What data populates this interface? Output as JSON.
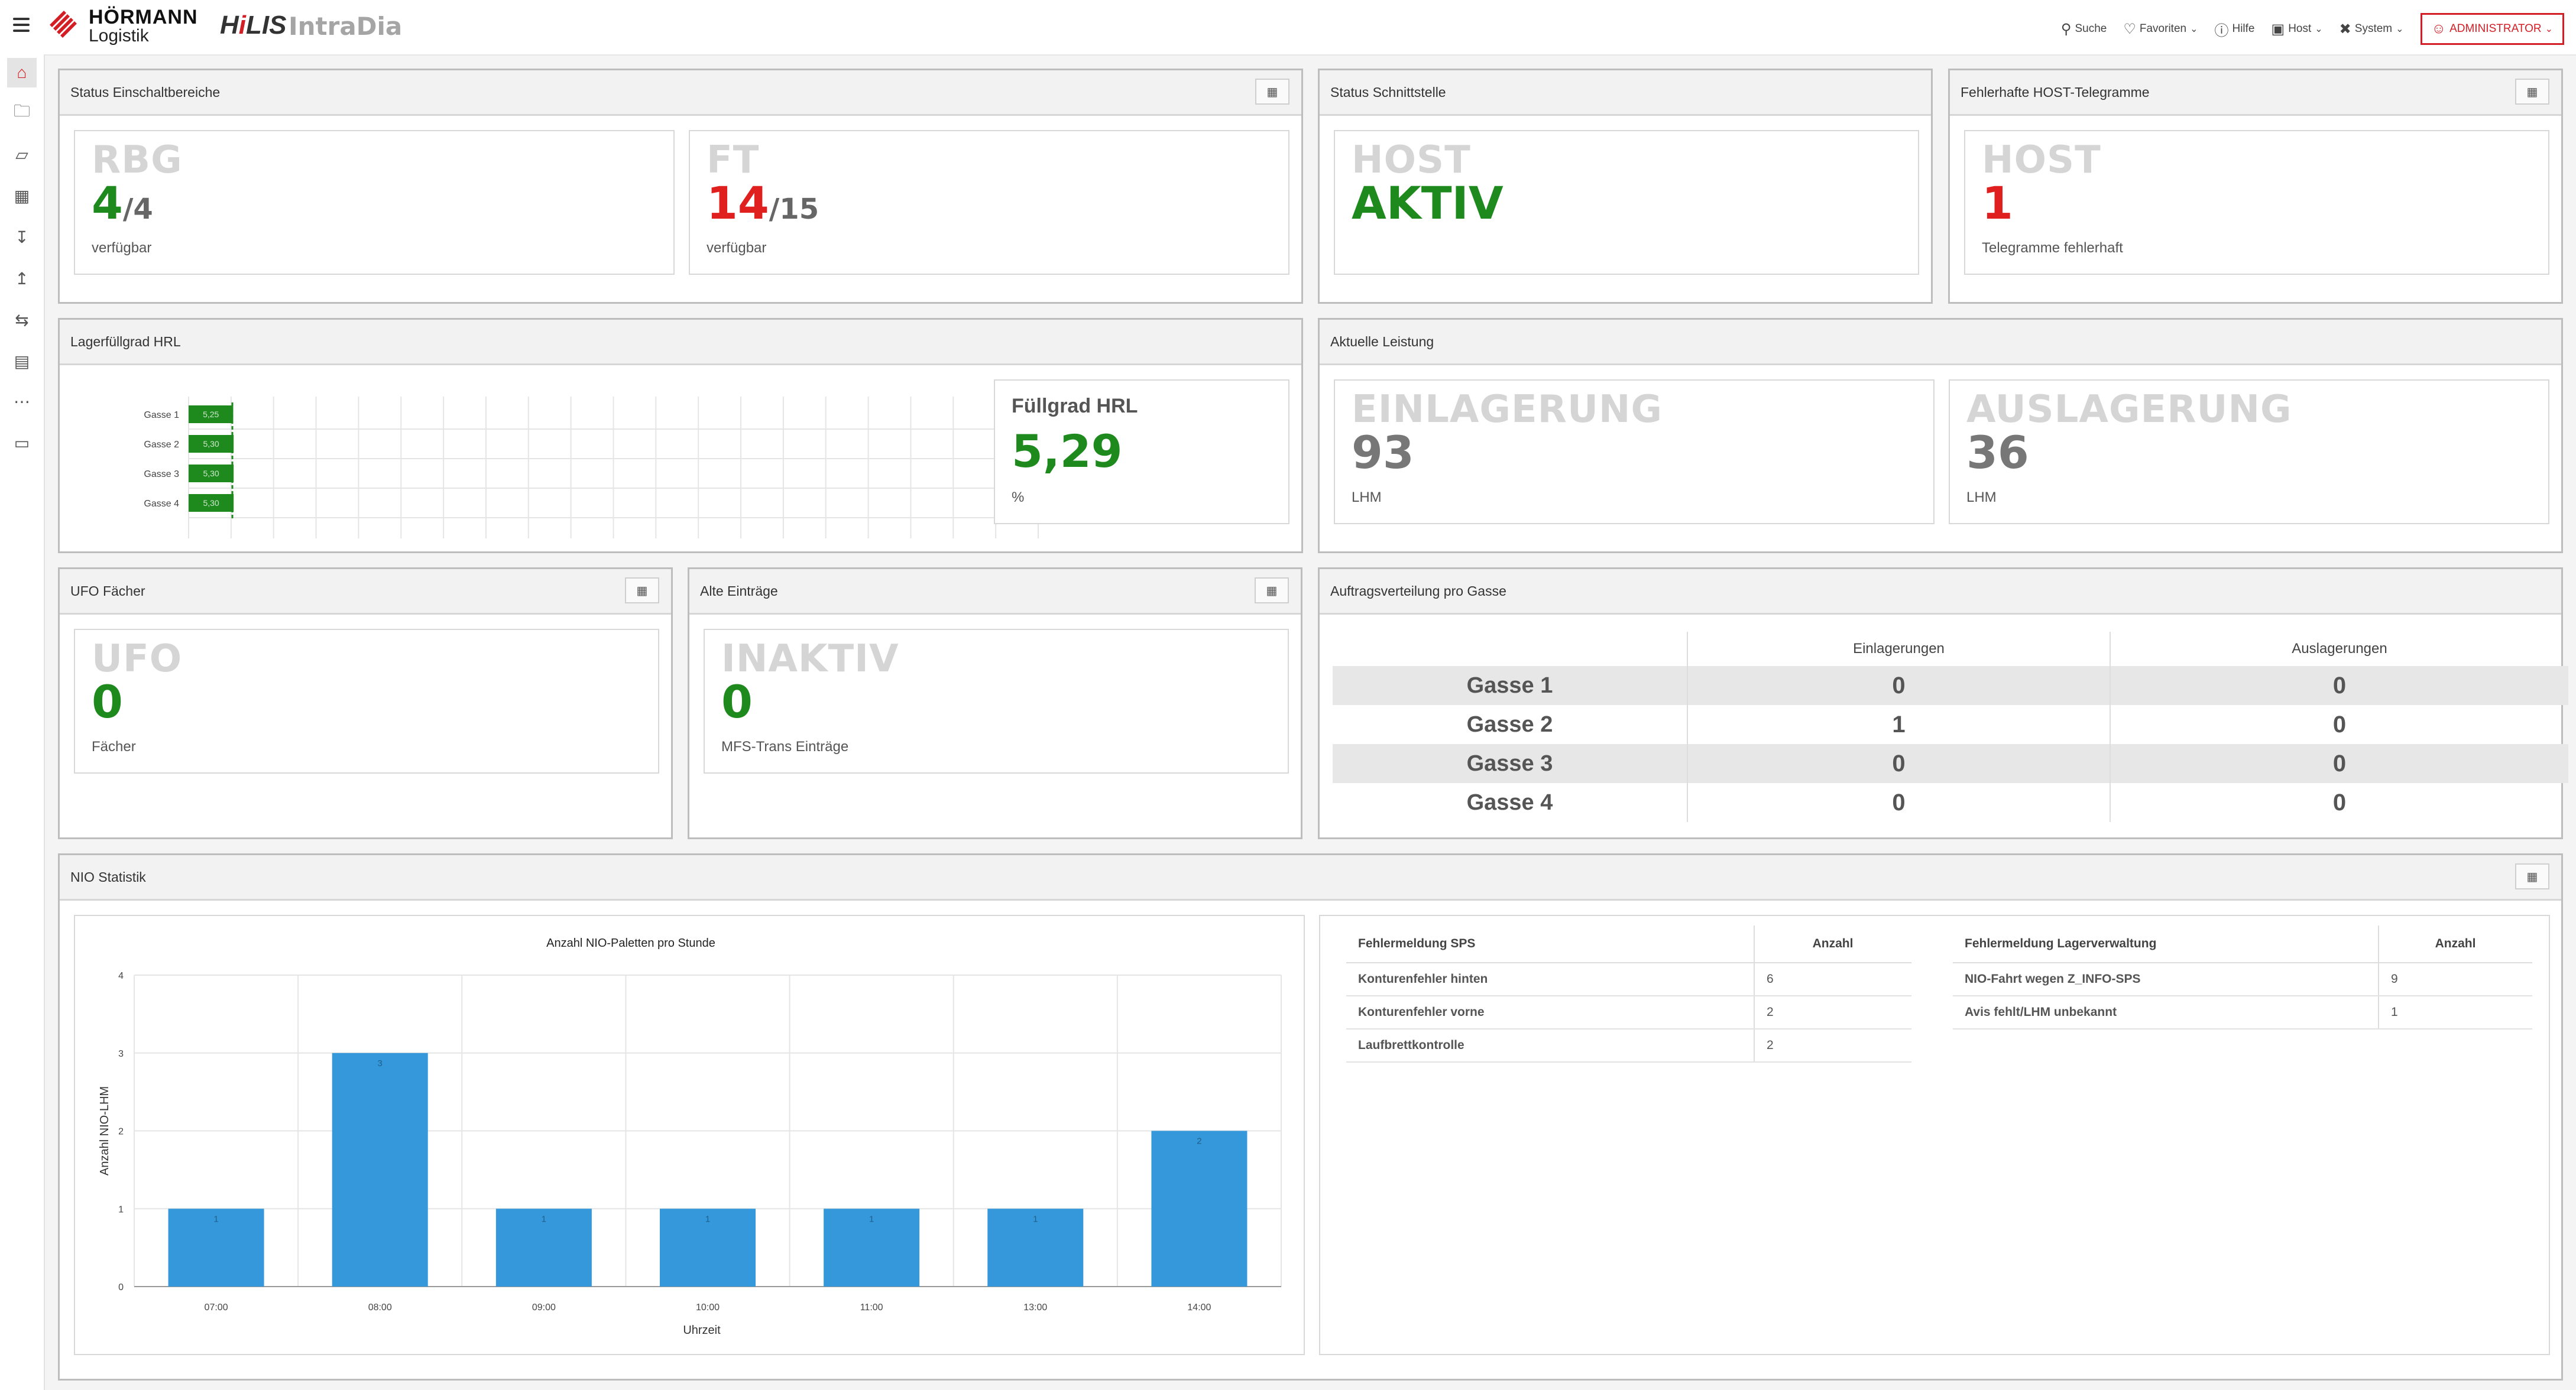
{
  "header": {
    "brand": "HÖRMANN",
    "brand_sub": "Logistik",
    "app_name_1": "H",
    "app_name_2": "i",
    "app_name_3": "LIS",
    "app_product": "IntraDia",
    "nav": {
      "search": "Suche",
      "favorites": "Favoriten",
      "help": "Hilfe",
      "host": "Host",
      "system": "System",
      "user": "ADMINISTRATOR"
    }
  },
  "sidebar": {
    "icons": [
      "home-icon",
      "folder-icon",
      "warehouse-icon",
      "grid-icon",
      "basket-in-icon",
      "basket-out-icon",
      "transfer-icon",
      "chart-icon",
      "more-icon",
      "monitor-icon"
    ]
  },
  "panels": {
    "status_einschalt": {
      "title": "Status Einschaltbereiche",
      "rbg": {
        "title": "RBG",
        "value": "4",
        "total": "/4",
        "caption": "verfügbar"
      },
      "ft": {
        "title": "FT",
        "value": "14",
        "total": "/15",
        "caption": "verfügbar"
      }
    },
    "status_schnittstelle": {
      "title": "Status Schnittstelle",
      "host": {
        "title": "HOST",
        "value": "AKTIV"
      }
    },
    "fehler_host": {
      "title": "Fehlerhafte HOST-Telegramme",
      "host": {
        "title": "HOST",
        "value": "1",
        "caption": "Telegramme fehlerhaft"
      }
    },
    "lagerfuell": {
      "title": "Lagerfüllgrad HRL",
      "fill_title": "Füllgrad HRL",
      "fill_value": "5,29",
      "fill_unit": "%"
    },
    "leistung": {
      "title": "Aktuelle Leistung",
      "ein": {
        "title": "EINLAGERUNG",
        "value": "93",
        "caption": "LHM"
      },
      "aus": {
        "title": "AUSLAGERUNG",
        "value": "36",
        "caption": "LHM"
      }
    },
    "ufo": {
      "title": "UFO Fächer",
      "tile": {
        "title": "UFO",
        "value": "0",
        "caption": "Fächer"
      }
    },
    "alte": {
      "title": "Alte Einträge",
      "tile": {
        "title": "INAKTIV",
        "value": "0",
        "caption": "MFS-Trans Einträge"
      }
    },
    "auftrag": {
      "title": "Auftragsverteilung pro Gasse",
      "col_ein": "Einlagerungen",
      "col_aus": "Auslagerungen",
      "rows": [
        {
          "label": "Gasse 1",
          "ein": "0",
          "aus": "0"
        },
        {
          "label": "Gasse 2",
          "ein": "1",
          "aus": "0"
        },
        {
          "label": "Gasse 3",
          "ein": "0",
          "aus": "0"
        },
        {
          "label": "Gasse 4",
          "ein": "0",
          "aus": "0"
        }
      ]
    },
    "nio": {
      "title": "NIO Statistik",
      "sps_table": {
        "col1": "Fehlermeldung SPS",
        "col2": "Anzahl",
        "rows": [
          {
            "label": "Konturenfehler hinten",
            "count": "6"
          },
          {
            "label": "Konturenfehler vorne",
            "count": "2"
          },
          {
            "label": "Laufbrettkontrolle",
            "count": "2"
          }
        ]
      },
      "lv_table": {
        "col1": "Fehlermeldung Lagerverwaltung",
        "col2": "Anzahl",
        "rows": [
          {
            "label": "NIO-Fahrt wegen Z_INFO-SPS",
            "count": "9"
          },
          {
            "label": "Avis fehlt/LHM unbekannt",
            "count": "1"
          }
        ]
      }
    }
  },
  "chart_data": [
    {
      "type": "bar",
      "orientation": "horizontal",
      "categories": [
        "Gasse 1",
        "Gasse 2",
        "Gasse 3",
        "Gasse 4"
      ],
      "values": [
        5.25,
        5.3,
        5.3,
        5.3
      ],
      "value_labels": [
        "5,25",
        "5,30",
        "5,30",
        "5,30"
      ],
      "xlim": [
        0,
        100
      ],
      "xticks": [
        "0,00",
        "5,00",
        "10,00",
        "15,00",
        "20,00",
        "25,00",
        "30,00",
        "35,00",
        "40,00",
        "45,00",
        "50,00",
        "55,00",
        "60,00",
        "65,00",
        "70,00",
        "75,00",
        "80,00",
        "85,00",
        "90,00",
        "95,00",
        "100,00"
      ],
      "colors": {
        "bar": "#1e8a1e",
        "grid": "#e5e5e5"
      },
      "grid": true
    },
    {
      "type": "bar",
      "title": "Anzahl NIO-Paletten pro Stunde",
      "xlabel": "Uhrzeit",
      "ylabel": "Anzahl NIO-LHM",
      "categories": [
        "07:00",
        "08:00",
        "09:00",
        "10:00",
        "11:00",
        "13:00",
        "14:00"
      ],
      "values": [
        1,
        3,
        1,
        1,
        1,
        1,
        2
      ],
      "ylim": [
        0,
        4
      ],
      "yticks": [
        "0",
        "1",
        "2",
        "3",
        "4"
      ],
      "colors": {
        "bar": "#3498db",
        "grid": "#e5e5e5"
      },
      "grid": true
    }
  ]
}
